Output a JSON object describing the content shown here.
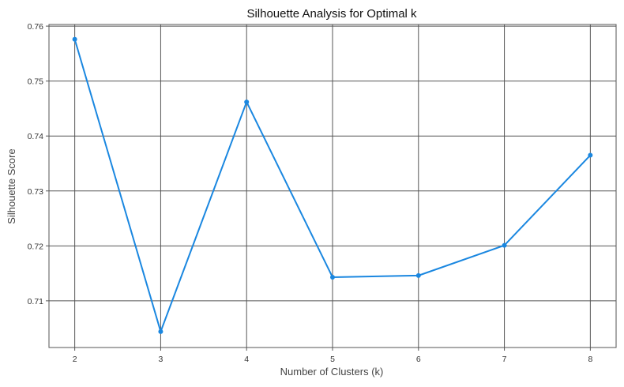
{
  "chart_data": {
    "type": "line",
    "title": "Silhouette Analysis for Optimal k",
    "xlabel": "Number of Clusters (k)",
    "ylabel": "Silhouette Score",
    "x": [
      2,
      3,
      4,
      5,
      6,
      7,
      8
    ],
    "series": [
      {
        "values": [
          0.7576,
          0.7044,
          0.7462,
          0.7143,
          0.7146,
          0.7201,
          0.7365
        ],
        "color": "#1a87e0"
      }
    ],
    "xticks": [
      2,
      3,
      4,
      5,
      6,
      7,
      8
    ],
    "yticks": [
      0.71,
      0.72,
      0.73,
      0.74,
      0.75,
      0.76
    ],
    "ytick_labels": [
      "0.71",
      "0.72",
      "0.73",
      "0.74",
      "0.75",
      "0.76"
    ],
    "xlim": [
      1.7,
      8.3
    ],
    "ylim": [
      0.7015,
      0.7603
    ],
    "grid": true,
    "legend": "none"
  }
}
